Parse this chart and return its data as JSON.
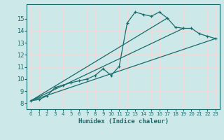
{
  "xlabel": "Humidex (Indice chaleur)",
  "xlim": [
    -0.5,
    23.5
  ],
  "ylim": [
    7.5,
    16.2
  ],
  "yticks": [
    8,
    9,
    10,
    11,
    12,
    13,
    14,
    15
  ],
  "xticks": [
    0,
    1,
    2,
    3,
    4,
    5,
    6,
    7,
    8,
    9,
    10,
    11,
    12,
    13,
    14,
    15,
    16,
    17,
    18,
    19,
    20,
    21,
    22,
    23
  ],
  "bg_color": "#cce8e8",
  "line_color": "#1a6b6b",
  "grid_color": "#f0d8d8",
  "series1_x": [
    0,
    1,
    2,
    3,
    4,
    5,
    6,
    7,
    8,
    9,
    10,
    11,
    12,
    13,
    14,
    15,
    16,
    17,
    18,
    19,
    20,
    21,
    22,
    23
  ],
  "series1_y": [
    8.2,
    8.3,
    8.6,
    9.3,
    9.5,
    9.7,
    9.85,
    10.0,
    10.3,
    10.85,
    10.3,
    11.05,
    14.65,
    15.55,
    15.35,
    15.2,
    15.55,
    15.05,
    14.3,
    14.2,
    14.2,
    13.75,
    13.55,
    13.35
  ],
  "series2_x": [
    0,
    23
  ],
  "series2_y": [
    8.2,
    13.35
  ],
  "series3_x": [
    0,
    19
  ],
  "series3_y": [
    8.2,
    14.2
  ],
  "series4_x": [
    0,
    17
  ],
  "series4_y": [
    8.2,
    15.05
  ]
}
